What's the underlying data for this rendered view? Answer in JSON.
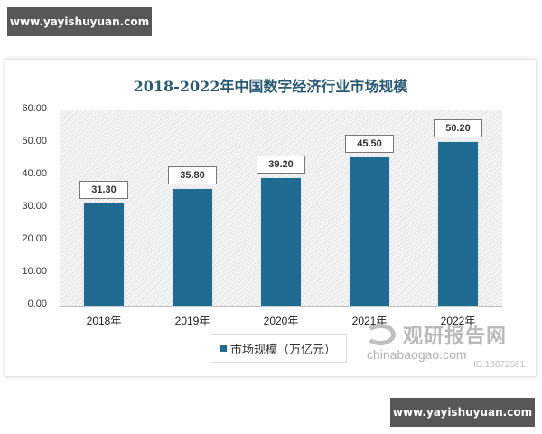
{
  "badges": {
    "top": "www.yayishuyuan.com",
    "bottom": "www.yayishuyuan.com"
  },
  "chart": {
    "title": "2018-2022年中国数字经济行业市场规模"
  },
  "legend": {
    "label": "市场规模（万亿元）"
  },
  "watermark": {
    "cn": "观研报告网",
    "en": "chinabaogao.com",
    "id": "ID:13672581"
  },
  "colors": {
    "bar": "#1f6b91",
    "title": "#2a5a73",
    "badge": "#575757"
  },
  "y_ticks": [
    "60.00",
    "50.00",
    "40.00",
    "30.00",
    "20.00",
    "10.00",
    "0.00"
  ],
  "bars": [
    {
      "year": "2018年",
      "value": 31.3,
      "label": "31.30"
    },
    {
      "year": "2019年",
      "value": 35.8,
      "label": "35.80"
    },
    {
      "year": "2020年",
      "value": 39.2,
      "label": "39.20"
    },
    {
      "year": "2021年",
      "value": 45.5,
      "label": "45.50"
    },
    {
      "year": "2022年",
      "value": 50.2,
      "label": "50.20"
    }
  ],
  "chart_data": {
    "type": "bar",
    "title": "2018-2022年中国数字经济行业市场规模",
    "categories": [
      "2018年",
      "2019年",
      "2020年",
      "2021年",
      "2022年"
    ],
    "series": [
      {
        "name": "市场规模（万亿元）",
        "values": [
          31.3,
          35.8,
          39.2,
          45.5,
          50.2
        ]
      }
    ],
    "xlabel": "",
    "ylabel": "",
    "ylim": [
      0,
      60
    ],
    "yticks": [
      0,
      10,
      20,
      30,
      40,
      50,
      60
    ],
    "grid": false,
    "legend_position": "bottom",
    "data_labels": true
  }
}
